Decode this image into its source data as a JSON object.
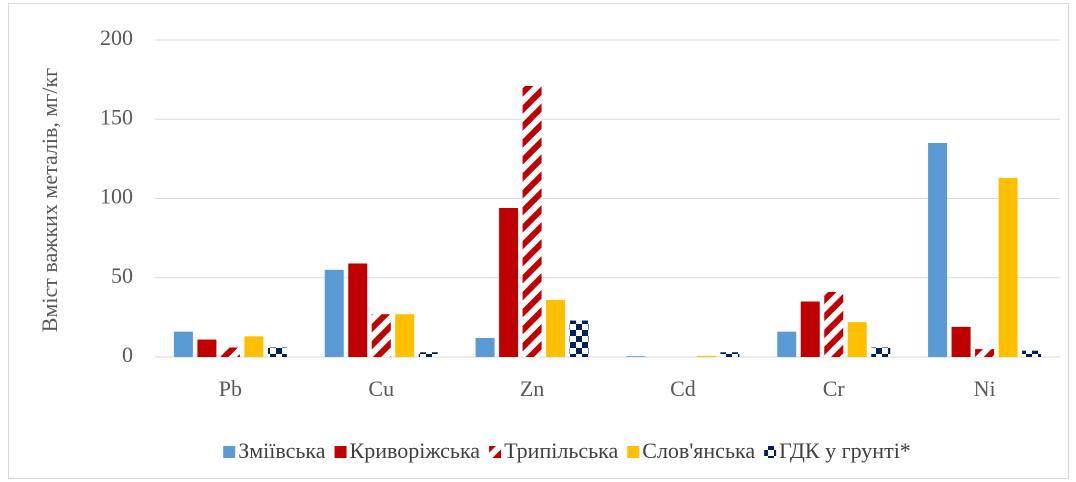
{
  "chart_data": {
    "type": "bar",
    "y_label": "Вміст важких металів, мг/кг",
    "categories": [
      "Pb",
      "Cu",
      "Zn",
      "Cd",
      "Cr",
      "Ni"
    ],
    "series": [
      {
        "name": "Зміївська",
        "color": "#5b9bd5",
        "pattern": "solid",
        "values": [
          16,
          55,
          12,
          0.5,
          16,
          135
        ]
      },
      {
        "name": "Криворіжська",
        "color": "#c00000",
        "pattern": "solid",
        "values": [
          11,
          59,
          94,
          0,
          35,
          19
        ]
      },
      {
        "name": "Трипільська",
        "color": "#c00000",
        "pattern": "diagonal",
        "values": [
          6,
          27,
          171,
          0,
          41,
          5
        ]
      },
      {
        "name": "Слов'янська",
        "color": "#ffc000",
        "pattern": "solid",
        "values": [
          13,
          27,
          36,
          0.7,
          22,
          113
        ]
      },
      {
        "name": "ГДК у грунті*",
        "color": "#002060",
        "pattern": "checker",
        "values": [
          6,
          3,
          23,
          3,
          6,
          4
        ]
      }
    ],
    "ylim": [
      0,
      200
    ],
    "yticks": [
      0,
      50,
      100,
      150,
      200
    ],
    "grid": true,
    "legend": "bottom"
  }
}
